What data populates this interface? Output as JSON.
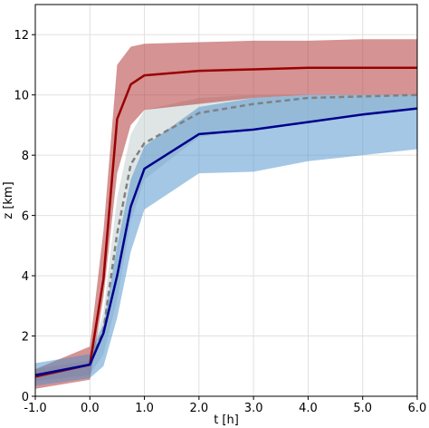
{
  "chart_data": {
    "type": "line",
    "xlabel": "t [h]",
    "ylabel": "z [km]",
    "xlim": [
      -1.0,
      6.0
    ],
    "ylim": [
      0,
      13
    ],
    "x_ticks": [
      -1.0,
      0.0,
      1.0,
      2.0,
      3.0,
      4.0,
      5.0,
      6.0
    ],
    "x_tick_labels": [
      "-1.0",
      "0.0",
      "1.0",
      "2.0",
      "3.0",
      "4.0",
      "5.0",
      "6.0"
    ],
    "y_ticks": [
      0,
      2,
      4,
      6,
      8,
      10,
      12
    ],
    "y_tick_labels": [
      "0",
      "2",
      "4",
      "6",
      "8",
      "10",
      "12"
    ],
    "grid": true,
    "bands": [
      {
        "color": "#c0cccc",
        "opacity": 0.5,
        "x": [
          -1,
          0,
          0.25,
          0.5,
          0.75,
          1,
          2,
          3,
          4,
          5,
          6
        ],
        "lower": [
          0.5,
          0.7,
          1.4,
          3.2,
          5.8,
          7.2,
          8.6,
          8.9,
          9.1,
          9.3,
          9.5
        ],
        "upper": [
          0.9,
          1.2,
          2.8,
          6.6,
          8.7,
          9.5,
          9.9,
          10.0,
          10.0,
          10.0,
          10.0
        ]
      },
      {
        "color": "#b23a3a",
        "opacity": 0.55,
        "x": [
          -1,
          0,
          0.25,
          0.5,
          0.75,
          1,
          2,
          3,
          4,
          5,
          6
        ],
        "lower": [
          0.25,
          0.55,
          3.3,
          7.4,
          9.0,
          9.5,
          9.7,
          9.9,
          10.0,
          10.0,
          10.0
        ],
        "upper": [
          0.9,
          1.65,
          5.5,
          11.0,
          11.6,
          11.7,
          11.75,
          11.8,
          11.8,
          11.85,
          11.85
        ]
      },
      {
        "color": "#4a8fcc",
        "opacity": 0.5,
        "x": [
          -1,
          0,
          0.25,
          0.5,
          0.75,
          1,
          2,
          3,
          4,
          5,
          6
        ],
        "lower": [
          0.35,
          0.6,
          1.0,
          2.6,
          4.8,
          6.2,
          7.4,
          7.45,
          7.8,
          8.0,
          8.2
        ],
        "upper": [
          1.1,
          1.4,
          2.4,
          5.0,
          7.2,
          8.3,
          9.6,
          9.9,
          10.0,
          10.0,
          10.0
        ]
      }
    ],
    "series": [
      {
        "color": "#990000",
        "dash": "",
        "x": [
          -1,
          0,
          0.25,
          0.5,
          0.75,
          1,
          2,
          3,
          4,
          5,
          6
        ],
        "y": [
          0.65,
          1.05,
          3.9,
          9.2,
          10.35,
          10.65,
          10.8,
          10.85,
          10.9,
          10.9,
          10.9
        ]
      },
      {
        "color": "#808080",
        "dash": "6,4",
        "x": [
          -1,
          0,
          0.25,
          0.5,
          0.75,
          1,
          2,
          3,
          4,
          5,
          6
        ],
        "y": [
          0.7,
          1.05,
          2.2,
          5.4,
          7.7,
          8.4,
          9.4,
          9.7,
          9.9,
          9.95,
          10.0
        ]
      },
      {
        "color": "#00008b",
        "dash": "",
        "x": [
          -1,
          0,
          0.25,
          0.5,
          0.75,
          1,
          2,
          3,
          4,
          5,
          6
        ],
        "y": [
          0.7,
          1.05,
          2.1,
          4.0,
          6.3,
          7.55,
          8.7,
          8.85,
          9.1,
          9.35,
          9.55
        ]
      }
    ]
  }
}
